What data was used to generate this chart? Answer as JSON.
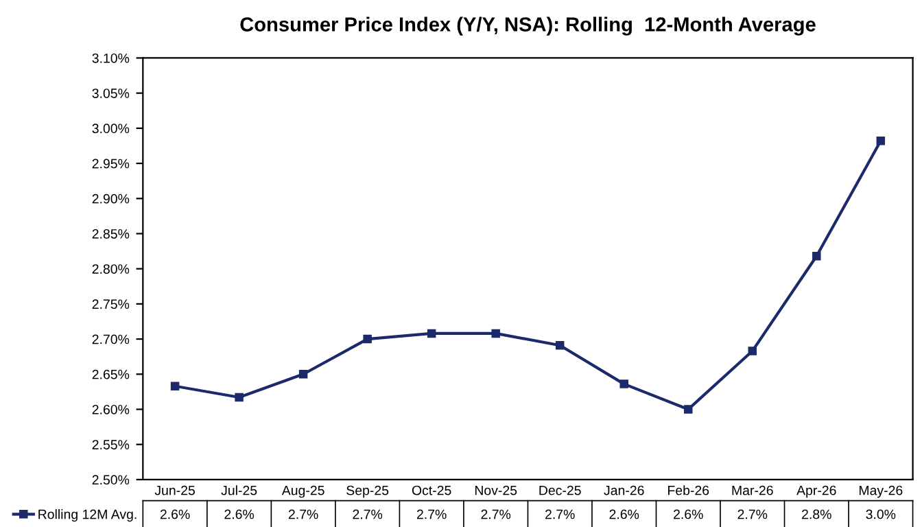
{
  "chart_data": {
    "type": "line",
    "title": "Consumer Price Index (Y/Y, NSA): Rolling  12-Month Average",
    "categories": [
      "Jun-25",
      "Jul-25",
      "Aug-25",
      "Sep-25",
      "Oct-25",
      "Nov-25",
      "Dec-25",
      "Jan-26",
      "Feb-26",
      "Mar-26",
      "Apr-26",
      "May-26"
    ],
    "series": [
      {
        "name": "Rolling 12M Avg.",
        "color": "#1c2a6b",
        "values": [
          2.633,
          2.617,
          2.65,
          2.7,
          2.708,
          2.708,
          2.691,
          2.636,
          2.6,
          2.683,
          2.818,
          2.982
        ],
        "value_labels": [
          "2.6%",
          "2.6%",
          "2.7%",
          "2.7%",
          "2.7%",
          "2.7%",
          "2.7%",
          "2.6%",
          "2.6%",
          "2.7%",
          "2.8%",
          "3.0%"
        ]
      }
    ],
    "ylim": [
      2.5,
      3.1
    ],
    "yticks": [
      {
        "value": 2.5,
        "label": "2.50%"
      },
      {
        "value": 2.55,
        "label": "2.55%"
      },
      {
        "value": 2.6,
        "label": "2.60%"
      },
      {
        "value": 2.65,
        "label": "2.65%"
      },
      {
        "value": 2.7,
        "label": "2.70%"
      },
      {
        "value": 2.75,
        "label": "2.75%"
      },
      {
        "value": 2.8,
        "label": "2.80%"
      },
      {
        "value": 2.85,
        "label": "2.85%"
      },
      {
        "value": 2.9,
        "label": "2.90%"
      },
      {
        "value": 2.95,
        "label": "2.95%"
      },
      {
        "value": 3.0,
        "label": "3.00%"
      },
      {
        "value": 3.05,
        "label": "3.05%"
      },
      {
        "value": 3.1,
        "label": "3.10%"
      }
    ],
    "marker": "square",
    "line_style": "solid",
    "legend": "bottom left",
    "grid": false
  }
}
